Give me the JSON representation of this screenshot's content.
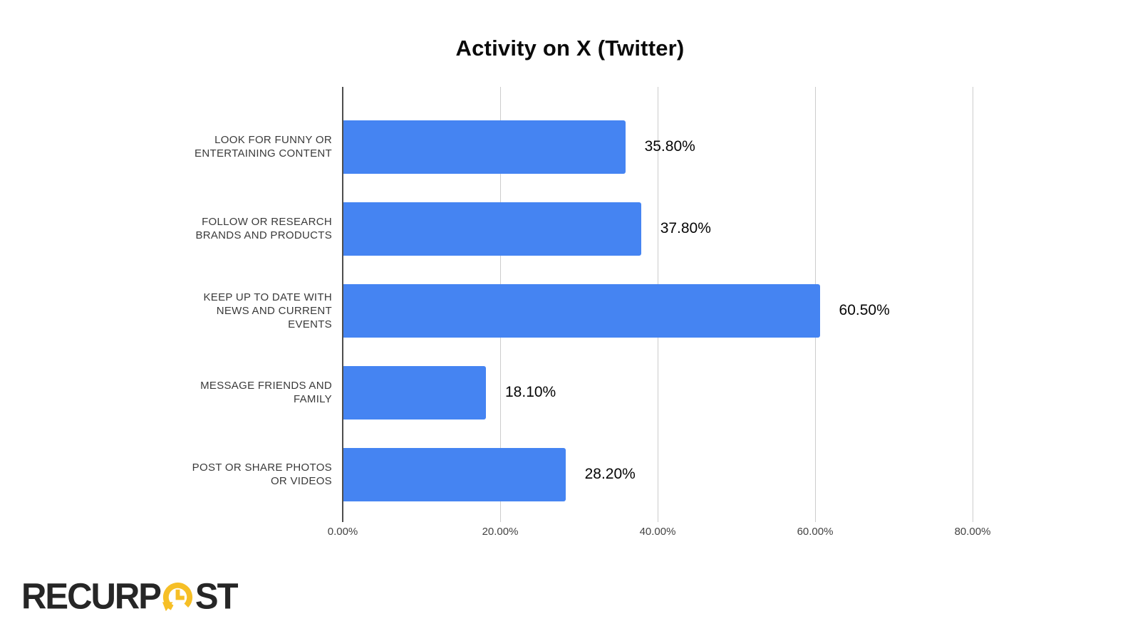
{
  "title": "Activity on X (Twitter)",
  "chart_data": {
    "type": "bar",
    "orientation": "horizontal",
    "title": "Activity on X (Twitter)",
    "categories": [
      "LOOK FOR FUNNY OR\nENTERTAINING CONTENT",
      "FOLLOW OR RESEARCH\nBRANDS AND PRODUCTS",
      "KEEP UP TO DATE WITH\nNEWS AND CURRENT\nEVENTS",
      "MESSAGE FRIENDS AND\nFAMILY",
      "POST OR SHARE PHOTOS\nOR VIDEOS"
    ],
    "values": [
      35.8,
      37.8,
      60.5,
      18.1,
      28.2
    ],
    "value_labels": [
      "35.80%",
      "37.80%",
      "60.50%",
      "18.10%",
      "28.20%"
    ],
    "x_tick_values": [
      0,
      20,
      40,
      60,
      80
    ],
    "x_tick_labels": [
      "0.00%",
      "20.00%",
      "40.00%",
      "60.00%",
      "80.00%"
    ],
    "xlim": [
      0,
      80
    ],
    "grid": true,
    "legend": "none",
    "xlabel": "",
    "ylabel": "",
    "bar_color": "#4584f2",
    "gridline_color": "#cccccc",
    "axis_line_color": "#4d4d4d",
    "value_label_color": "#050505",
    "category_label_color": "#3a3a3a"
  },
  "logo": {
    "name": "RecurPost",
    "part1": "RECURP",
    "part2": "ST",
    "text_color": "#262626",
    "accent_color": "#f6bf26",
    "icon": "clock-refresh-icon"
  }
}
